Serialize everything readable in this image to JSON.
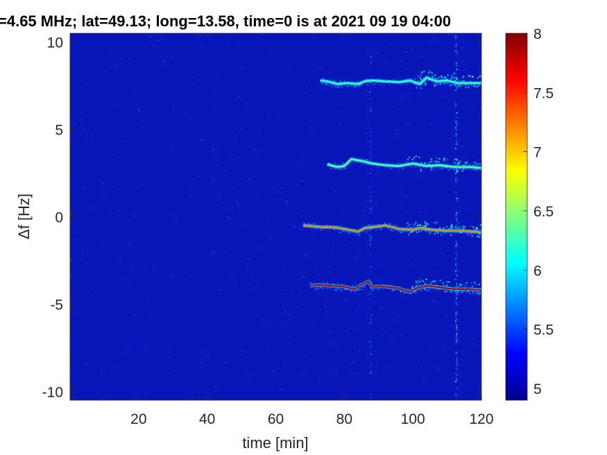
{
  "chart_data": {
    "type": "heatmap",
    "title": "=4.65 MHz;  lat=49.13; long=13.58, time=0 is at 2021 09 19 04:00",
    "xlabel": "time [min]",
    "ylabel": "Δf [Hz]",
    "xlim": [
      0,
      120
    ],
    "ylim": [
      -10.5,
      10.5
    ],
    "x_ticks": [
      20,
      40,
      60,
      80,
      100,
      120
    ],
    "y_ticks": [
      10,
      5,
      0,
      -5,
      -10
    ],
    "x_tick_labels": [
      "20",
      "40",
      "60",
      "80",
      "100",
      "120"
    ],
    "y_tick_labels": [
      "10",
      "5",
      "0",
      "-5",
      "-10"
    ],
    "colorbar": {
      "colormap": "jet",
      "range": [
        4.9,
        8
      ],
      "ticks": [
        8,
        7.5,
        7,
        6.5,
        6,
        5.5,
        5
      ],
      "tick_labels": [
        "8",
        "7.5",
        "7",
        "6.5",
        "6",
        "5.5",
        "5"
      ]
    },
    "background_level": 5.0,
    "traces": [
      {
        "points": [
          [
            73,
            7.8
          ],
          [
            75,
            7.75
          ],
          [
            78,
            7.6
          ],
          [
            81,
            7.65
          ],
          [
            84,
            7.6
          ],
          [
            86,
            7.75
          ],
          [
            88,
            7.8
          ],
          [
            92,
            7.75
          ],
          [
            96,
            7.7
          ],
          [
            99,
            7.8
          ],
          [
            102,
            7.6
          ],
          [
            104,
            7.95
          ],
          [
            107,
            7.75
          ],
          [
            110,
            7.8
          ],
          [
            113,
            7.65
          ],
          [
            116,
            7.65
          ],
          [
            120,
            7.65
          ]
        ],
        "level": 6.3
      },
      {
        "points": [
          [
            75,
            3.0
          ],
          [
            78,
            2.85
          ],
          [
            80,
            2.9
          ],
          [
            82,
            3.3
          ],
          [
            85,
            3.2
          ],
          [
            88,
            3.05
          ],
          [
            92,
            2.95
          ],
          [
            96,
            2.9
          ],
          [
            100,
            3.05
          ],
          [
            104,
            2.9
          ],
          [
            108,
            2.95
          ],
          [
            112,
            2.85
          ],
          [
            116,
            2.85
          ],
          [
            120,
            2.8
          ]
        ],
        "level": 6.4
      },
      {
        "points": [
          [
            68,
            -0.5
          ],
          [
            71,
            -0.55
          ],
          [
            74,
            -0.6
          ],
          [
            77,
            -0.6
          ],
          [
            80,
            -0.7
          ],
          [
            84,
            -0.85
          ],
          [
            86,
            -0.65
          ],
          [
            88,
            -0.6
          ],
          [
            92,
            -0.5
          ],
          [
            96,
            -0.7
          ],
          [
            100,
            -0.75
          ],
          [
            102,
            -0.65
          ],
          [
            106,
            -0.75
          ],
          [
            110,
            -0.8
          ],
          [
            114,
            -0.8
          ],
          [
            118,
            -0.85
          ],
          [
            120,
            -0.9
          ]
        ],
        "level": 7.2
      },
      {
        "points": [
          [
            70,
            -3.95
          ],
          [
            72,
            -3.9
          ],
          [
            76,
            -3.95
          ],
          [
            80,
            -4.0
          ],
          [
            83,
            -4.15
          ],
          [
            85,
            -3.9
          ],
          [
            87,
            -3.7
          ],
          [
            88,
            -4.0
          ],
          [
            92,
            -4.0
          ],
          [
            96,
            -4.1
          ],
          [
            99,
            -4.3
          ],
          [
            101,
            -4.1
          ],
          [
            104,
            -3.95
          ],
          [
            108,
            -4.05
          ],
          [
            112,
            -4.15
          ],
          [
            116,
            -4.15
          ],
          [
            120,
            -4.2
          ]
        ],
        "level": 7.8
      }
    ],
    "vertical_streaks": [
      {
        "x": 87.5,
        "level": 5.8
      },
      {
        "x": 112.5,
        "level": 6.1
      }
    ]
  }
}
